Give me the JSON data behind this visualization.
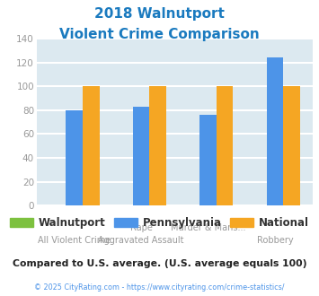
{
  "title_line1": "2018 Walnutport",
  "title_line2": "Violent Crime Comparison",
  "title_color": "#1a7abf",
  "cat_labels_top": [
    "",
    "Rape",
    "Murder & Mans...",
    ""
  ],
  "cat_labels_bot": [
    "All Violent Crime",
    "Aggravated Assault",
    "",
    "Robbery"
  ],
  "walnutport": [
    0,
    0,
    0,
    0
  ],
  "pennsylvania": [
    80,
    83,
    76,
    124
  ],
  "national": [
    100,
    100,
    100,
    100
  ],
  "colors": {
    "walnutport": "#7dc13f",
    "pennsylvania": "#4d94e8",
    "national": "#f5a623"
  },
  "ylim": [
    0,
    140
  ],
  "yticks": [
    0,
    20,
    40,
    60,
    80,
    100,
    120,
    140
  ],
  "background_color": "#dce9f0",
  "grid_color": "#ffffff",
  "note": "Compared to U.S. average. (U.S. average equals 100)",
  "note_color": "#222222",
  "copyright": "© 2025 CityRating.com - https://www.cityrating.com/crime-statistics/",
  "copyright_color": "#4d94e8",
  "tick_label_color": "#999999",
  "bar_width": 0.25,
  "legend_labels": [
    "Walnutport",
    "Pennsylvania",
    "National"
  ]
}
